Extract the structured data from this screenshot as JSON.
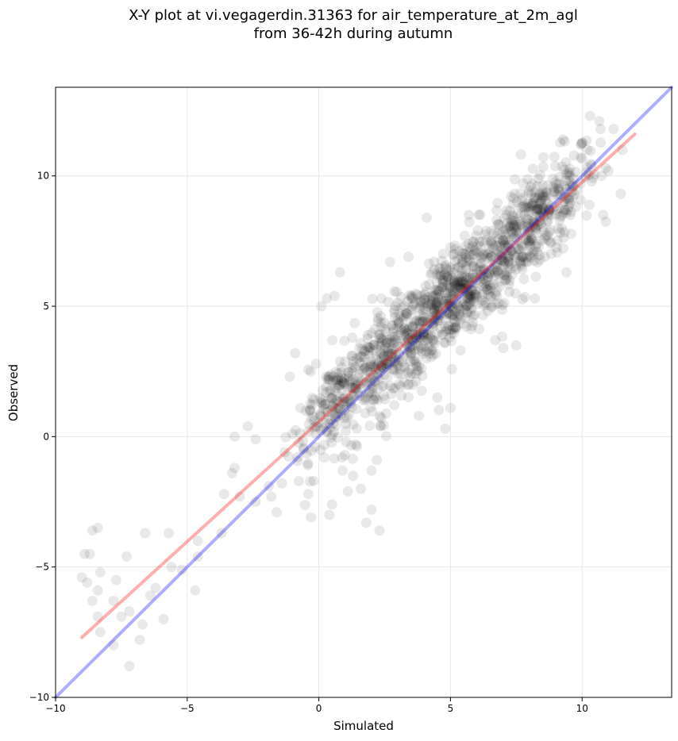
{
  "chart_data": {
    "type": "scatter",
    "title_line1": "X-Y plot at vi.vegagerdin.31363 for air_temperature_at_2m_agl",
    "title_line2": "from 36-42h during autumn",
    "xlabel": "Simulated",
    "ylabel": "Observed",
    "xlim": [
      -10,
      13.4
    ],
    "ylim": [
      -10,
      13.4
    ],
    "xticks": [
      -10,
      -5,
      0,
      5,
      10
    ],
    "yticks": [
      -10,
      -5,
      0,
      5,
      10
    ],
    "xtick_labels": [
      "−10",
      "−5",
      "0",
      "5",
      "10"
    ],
    "ytick_labels": [
      "−10",
      "−5",
      "0",
      "5",
      "10"
    ],
    "grid": true,
    "point_color": "#000000",
    "identity_line_color": "#0000ff",
    "fit_line_color": "#ff0000",
    "fit_line": {
      "x": [
        -9,
        12
      ],
      "y": [
        -7.7,
        11.6
      ]
    },
    "identity_line": {
      "x": [
        -10,
        13.4
      ],
      "y": [
        -10,
        13.4
      ]
    },
    "noise_points": [
      [
        -8.9,
        -4.5
      ],
      [
        -8.6,
        -3.6
      ],
      [
        -8.4,
        -3.5
      ],
      [
        -8.7,
        -4.5
      ],
      [
        -9.0,
        -5.4
      ],
      [
        -8.8,
        -5.6
      ],
      [
        -8.3,
        -5.2
      ],
      [
        -8.4,
        -5.9
      ],
      [
        -8.6,
        -6.3
      ],
      [
        -8.4,
        -6.9
      ],
      [
        -8.3,
        -7.5
      ],
      [
        -7.8,
        -6.3
      ],
      [
        -7.5,
        -6.9
      ],
      [
        -7.2,
        -6.7
      ],
      [
        -7.7,
        -5.5
      ],
      [
        -7.3,
        -4.6
      ],
      [
        -6.6,
        -3.7
      ],
      [
        -6.7,
        -7.2
      ],
      [
        -6.8,
        -7.8
      ],
      [
        -7.8,
        -8.0
      ],
      [
        -7.2,
        -8.8
      ],
      [
        -6.4,
        -6.1
      ],
      [
        -6.2,
        -5.8
      ],
      [
        -5.9,
        -7.0
      ],
      [
        -5.7,
        -3.7
      ],
      [
        -5.6,
        -5.0
      ],
      [
        -5.2,
        -5.1
      ],
      [
        -4.6,
        -4.6
      ],
      [
        -4.7,
        -5.9
      ],
      [
        -4.6,
        -4.0
      ],
      [
        -3.7,
        -3.7
      ],
      [
        -3.6,
        -2.2
      ],
      [
        -3.3,
        -1.4
      ],
      [
        -3.2,
        -1.2
      ],
      [
        -3.0,
        -2.3
      ],
      [
        -3.2,
        -0.0
      ],
      [
        -2.7,
        0.4
      ],
      [
        -2.4,
        -0.1
      ],
      [
        -2.4,
        -2.5
      ],
      [
        -1.9,
        -1.9
      ],
      [
        -1.8,
        -2.3
      ],
      [
        -1.6,
        -2.9
      ],
      [
        -1.3,
        -0.6
      ],
      [
        -1.1,
        2.3
      ],
      [
        -0.9,
        3.2
      ],
      [
        -0.7,
        1.1
      ],
      [
        -0.4,
        -2.2
      ],
      [
        -0.3,
        -3.1
      ],
      [
        -0.2,
        -1.7
      ],
      [
        -0.1,
        2.8
      ],
      [
        0.1,
        5.0
      ],
      [
        0.3,
        5.3
      ],
      [
        0.6,
        5.4
      ],
      [
        0.8,
        6.3
      ],
      [
        0.5,
        -2.6
      ],
      [
        0.4,
        -3.0
      ],
      [
        0.9,
        -1.3
      ],
      [
        1.1,
        -2.1
      ],
      [
        1.3,
        -1.5
      ],
      [
        1.4,
        -0.3
      ],
      [
        1.6,
        -2.0
      ],
      [
        2.0,
        -2.8
      ],
      [
        1.8,
        -3.3
      ],
      [
        2.3,
        -3.6
      ],
      [
        2.0,
        -1.3
      ],
      [
        2.2,
        -0.9
      ],
      [
        2.7,
        6.7
      ],
      [
        3.4,
        6.9
      ],
      [
        4.1,
        8.4
      ],
      [
        4.8,
        0.3
      ],
      [
        5.0,
        1.1
      ],
      [
        4.5,
        1.5
      ],
      [
        3.8,
        0.8
      ],
      [
        5.7,
        8.5
      ],
      [
        6.7,
        3.7
      ],
      [
        7.0,
        3.4
      ],
      [
        7.5,
        3.5
      ],
      [
        8.2,
        5.3
      ],
      [
        9.4,
        6.3
      ],
      [
        10.8,
        8.5
      ],
      [
        11.0,
        10.2
      ],
      [
        10.7,
        11.8
      ],
      [
        11.2,
        11.8
      ],
      [
        10.3,
        12.3
      ]
    ]
  }
}
